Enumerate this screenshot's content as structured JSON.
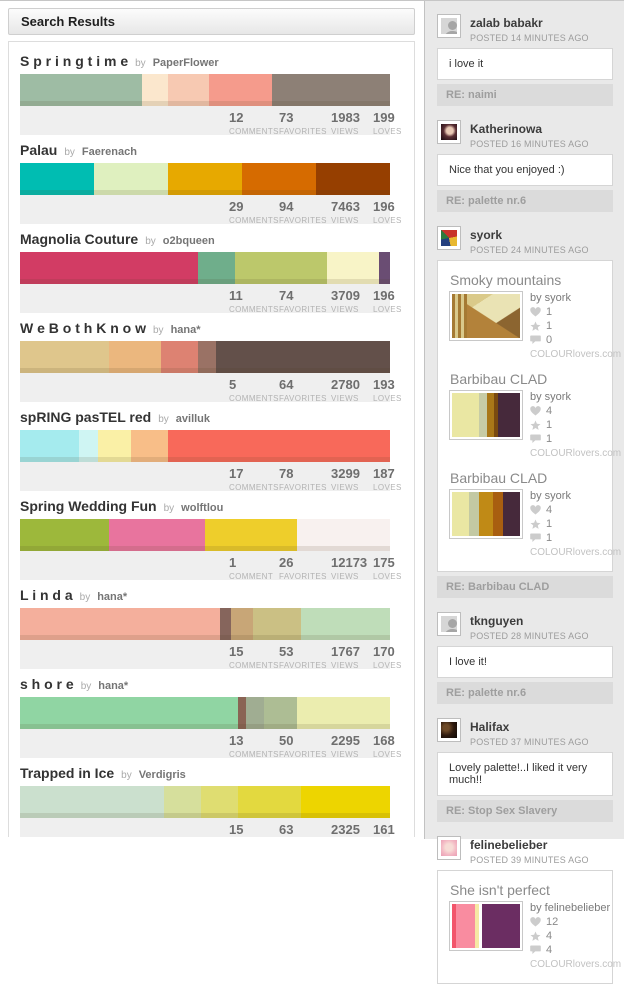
{
  "header": {
    "title": "Search Results"
  },
  "stats_labels": {
    "favorites": "FAVORITES",
    "views": "VIEWS",
    "loves": "LOVES"
  },
  "palettes": [
    {
      "title": "S p r i n g t i m e",
      "by_label": "by",
      "author": "PaperFlower",
      "comments": "12",
      "comments_label": "COMMENTS",
      "favorites": "73",
      "views": "1983",
      "loves": "199",
      "colors": [
        {
          "hex": "#9EBCA4",
          "w": "33%"
        },
        {
          "hex": "#FBE7CD",
          "w": "7%"
        },
        {
          "hex": "#F7C9B2",
          "w": "11%"
        },
        {
          "hex": "#F59B8C",
          "w": "17%"
        },
        {
          "hex": "#8D8076",
          "w": "32%"
        }
      ]
    },
    {
      "title": "Palau",
      "by_label": "by",
      "author": "Faerenach",
      "comments": "29",
      "comments_label": "COMMENTS",
      "favorites": "94",
      "views": "7463",
      "loves": "196",
      "colors": [
        {
          "hex": "#00BDB2",
          "w": "20%"
        },
        {
          "hex": "#DFF0BF",
          "w": "20%"
        },
        {
          "hex": "#E7A900",
          "w": "20%"
        },
        {
          "hex": "#D66B00",
          "w": "20%"
        },
        {
          "hex": "#963F00",
          "w": "20%"
        }
      ]
    },
    {
      "title": "Magnolia Couture",
      "by_label": "by",
      "author": "o2bqueen",
      "comments": "11",
      "comments_label": "COMMENTS",
      "favorites": "74",
      "views": "3709",
      "loves": "196",
      "colors": [
        {
          "hex": "#D23C64",
          "w": "48%"
        },
        {
          "hex": "#6FAE8B",
          "w": "10%"
        },
        {
          "hex": "#BCC86B",
          "w": "25%"
        },
        {
          "hex": "#F8F4C7",
          "w": "14%"
        },
        {
          "hex": "#6A4D73",
          "w": "3%"
        }
      ]
    },
    {
      "title": "W e B o t h K n o w",
      "by_label": "by",
      "author": "hana*",
      "comments": "5",
      "comments_label": "COMMENTS",
      "favorites": "64",
      "views": "2780",
      "loves": "193",
      "colors": [
        {
          "hex": "#DFC68C",
          "w": "24%"
        },
        {
          "hex": "#EBB77E",
          "w": "14%"
        },
        {
          "hex": "#DD8272",
          "w": "10%"
        },
        {
          "hex": "#9A7265",
          "w": "5%"
        },
        {
          "hex": "#63504A",
          "w": "47%"
        }
      ]
    },
    {
      "title": "spRING pasTEL red",
      "by_label": "by",
      "author": "avilluk",
      "comments": "17",
      "comments_label": "COMMENTS",
      "favorites": "78",
      "views": "3299",
      "loves": "187",
      "colors": [
        {
          "hex": "#A5EBEE",
          "w": "16%"
        },
        {
          "hex": "#CFF5F3",
          "w": "5%"
        },
        {
          "hex": "#FAF0A6",
          "w": "9%"
        },
        {
          "hex": "#F8BE88",
          "w": "10%"
        },
        {
          "hex": "#F8695A",
          "w": "60%"
        }
      ]
    },
    {
      "title": "Spring Wedding Fun",
      "by_label": "by",
      "author": "wolftlou",
      "comments": "1",
      "comments_label": "COMMENT",
      "favorites": "26",
      "views": "12173",
      "loves": "175",
      "colors": [
        {
          "hex": "#9DB83B",
          "w": "24%"
        },
        {
          "hex": "#E8749E",
          "w": "26%"
        },
        {
          "hex": "#EECE2B",
          "w": "25%"
        },
        {
          "hex": "#F8F1EF",
          "w": "25%"
        }
      ]
    },
    {
      "title": "L i n d a",
      "by_label": "by",
      "author": "hana*",
      "comments": "15",
      "comments_label": "COMMENTS",
      "favorites": "53",
      "views": "1767",
      "loves": "170",
      "colors": [
        {
          "hex": "#F4AF9C",
          "w": "54%"
        },
        {
          "hex": "#86655C",
          "w": "3%"
        },
        {
          "hex": "#C8A677",
          "w": "6%"
        },
        {
          "hex": "#CBC084",
          "w": "13%"
        },
        {
          "hex": "#BFDDB9",
          "w": "24%"
        }
      ]
    },
    {
      "title": "s h o r e",
      "by_label": "by",
      "author": "hana*",
      "comments": "13",
      "comments_label": "COMMENTS",
      "favorites": "50",
      "views": "2295",
      "loves": "168",
      "colors": [
        {
          "hex": "#90D5A3",
          "w": "59%"
        },
        {
          "hex": "#8A6454",
          "w": "2%"
        },
        {
          "hex": "#A0AD92",
          "w": "5%"
        },
        {
          "hex": "#ADBD94",
          "w": "9%"
        },
        {
          "hex": "#EBEDAF",
          "w": "25%"
        }
      ]
    },
    {
      "title": "Trapped in Ice",
      "by_label": "by",
      "author": "Verdigris",
      "comments": "15",
      "comments_label": "COMMENTS",
      "favorites": "63",
      "views": "2325",
      "loves": "161",
      "colors": [
        {
          "hex": "#CBE0CE",
          "w": "39%"
        },
        {
          "hex": "#D6DF9C",
          "w": "10%"
        },
        {
          "hex": "#DFDD71",
          "w": "10%"
        },
        {
          "hex": "#E3D93F",
          "w": "17%"
        },
        {
          "hex": "#EDD500",
          "w": "24%"
        }
      ]
    }
  ],
  "sidebar": {
    "entries": [
      {
        "user": "zalab babakr",
        "posted": "POSTED 14 MINUTES AGO",
        "avatar_class": "av-default",
        "body": "i love it",
        "re": "RE: naimi"
      },
      {
        "user": "Katherinowa",
        "posted": "POSTED 16 MINUTES AGO",
        "avatar_class": "av-katherinowa",
        "body": "Nice that you enjoyed :)",
        "re": "RE: palette nr.6"
      },
      {
        "user": "syork",
        "posted": "POSTED 24 MINUTES AGO",
        "avatar_class": "av-syork",
        "re": "RE: Barbibau CLAD",
        "cards": [
          {
            "title": "Smoky mountains",
            "by": "by syork",
            "hearts": "1",
            "stars": "1",
            "comments": "0",
            "site": "COLOURlovers.com",
            "art": "mountain-pattern-thumbnail"
          },
          {
            "title": "Barbibau CLAD",
            "by": "by syork",
            "hearts": "4",
            "stars": "1",
            "comments": "1",
            "site": "COLOURlovers.com",
            "colors": [
              {
                "hex": "#EAE7A3",
                "w": "40%"
              },
              {
                "hex": "#C7CCA6",
                "w": "12%"
              },
              {
                "hex": "#A97718",
                "w": "10%"
              },
              {
                "hex": "#7A4A10",
                "w": "5%"
              },
              {
                "hex": "#46293B",
                "w": "33%"
              }
            ]
          },
          {
            "title": "Barbibau CLAD",
            "by": "by syork",
            "hearts": "4",
            "stars": "1",
            "comments": "1",
            "site": "COLOURlovers.com",
            "colors": [
              {
                "hex": "#EAE7A3",
                "w": "25%"
              },
              {
                "hex": "#C3C9A3",
                "w": "15%"
              },
              {
                "hex": "#C08A16",
                "w": "20%"
              },
              {
                "hex": "#A85E10",
                "w": "15%"
              },
              {
                "hex": "#46293B",
                "w": "25%"
              }
            ]
          }
        ]
      },
      {
        "user": "tknguyen",
        "posted": "POSTED 28 MINUTES AGO",
        "avatar_class": "av-default",
        "body": "I love it!",
        "re": "RE: palette nr.6"
      },
      {
        "user": "Halifax",
        "posted": "POSTED 37 MINUTES AGO",
        "avatar_class": "av-halifax",
        "body": "Lovely palette!..I liked it very much!!",
        "re": "RE: Stop Sex Slavery"
      },
      {
        "user": "felinebelieber",
        "posted": "POSTED 39 MINUTES AGO",
        "avatar_class": "av-feline",
        "cards": [
          {
            "title": "She isn't perfect",
            "by": "by felinebelieber",
            "hearts": "12",
            "stars": "4",
            "comments": "4",
            "site": "COLOURlovers.com",
            "colors": [
              {
                "hex": "#F2556B",
                "w": "6%"
              },
              {
                "hex": "#F98CA0",
                "w": "28%"
              },
              {
                "hex": "#F6E8A4",
                "w": "6%"
              },
              {
                "hex": "#FFFFFF",
                "w": "4%"
              },
              {
                "hex": "#6B2D62",
                "w": "56%"
              }
            ]
          }
        ]
      }
    ]
  }
}
